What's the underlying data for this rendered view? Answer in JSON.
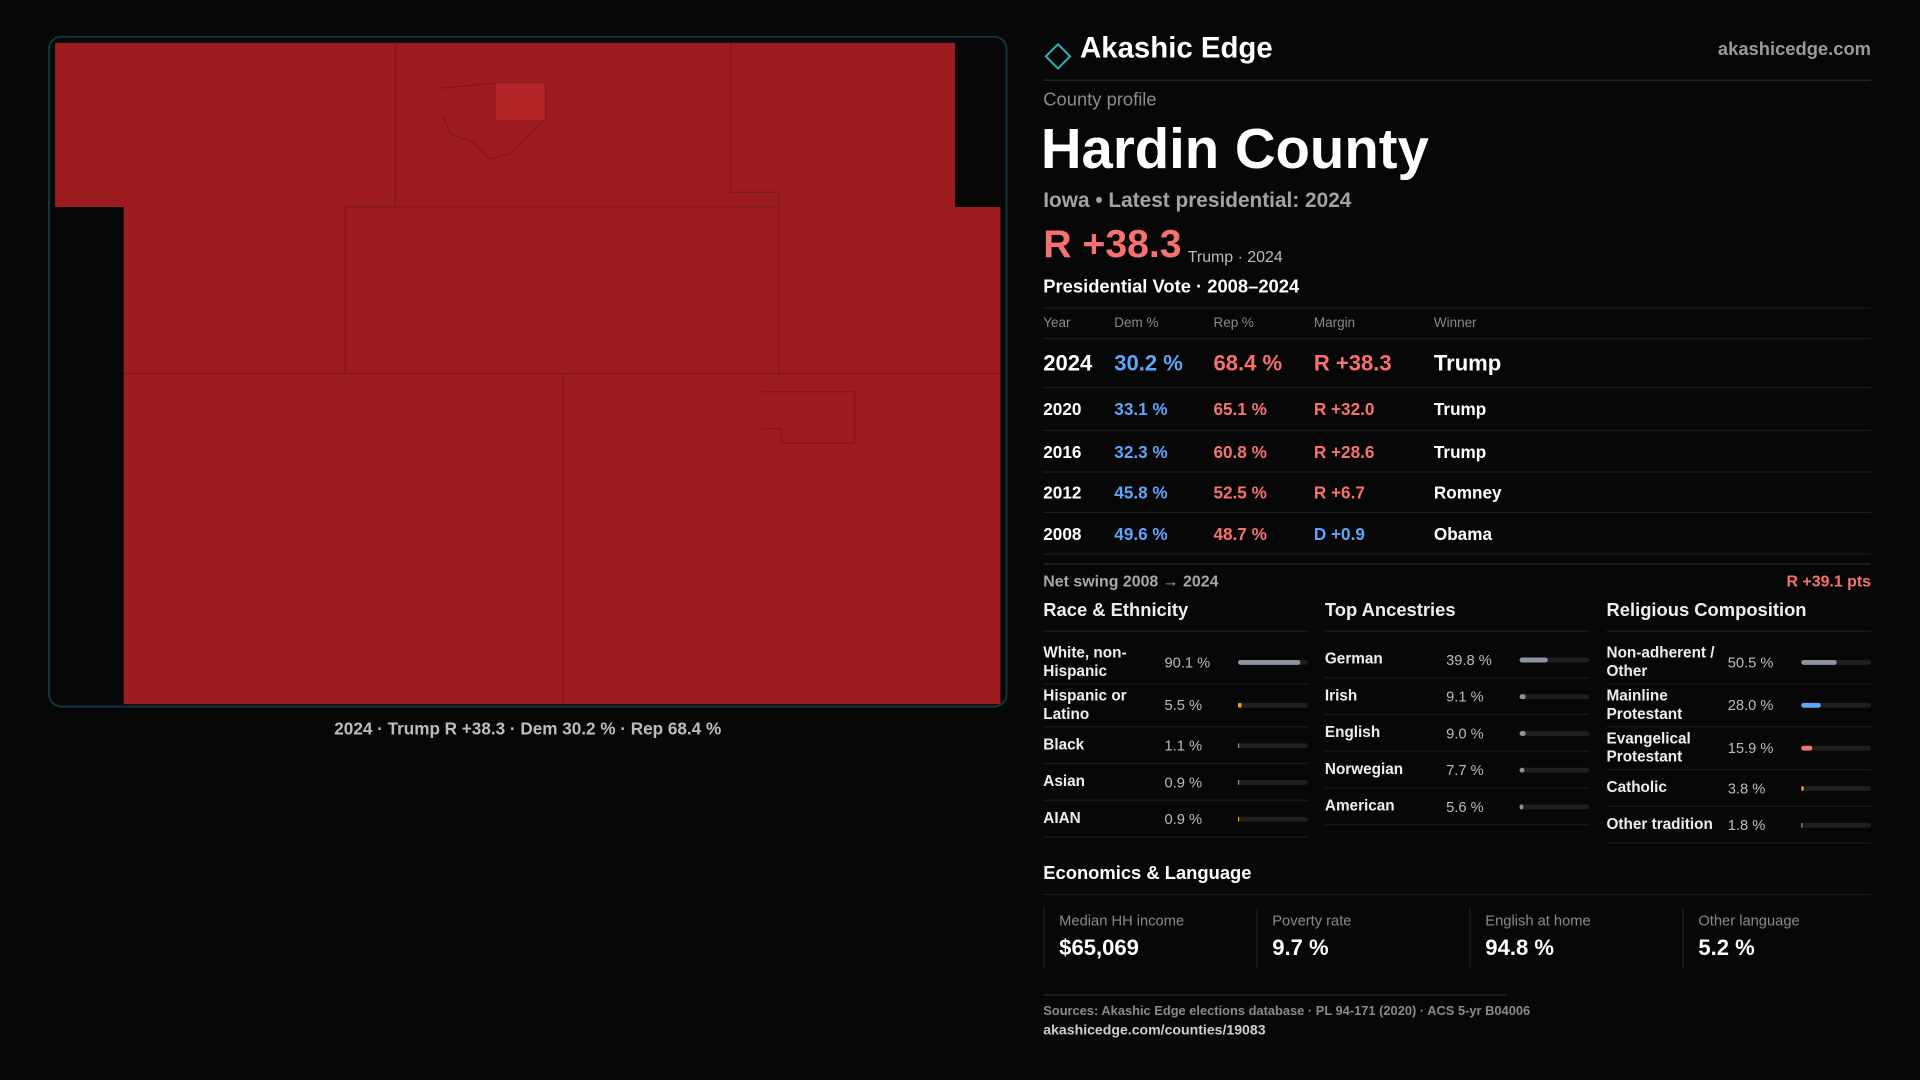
{
  "header": {
    "brand": "Akashic Edge",
    "site": "akashicedge.com"
  },
  "profile": {
    "kicker": "County profile",
    "title": "Hardin County",
    "subtitle": "Iowa • Latest presidential: 2024",
    "margin": "R +38.3",
    "margin_note": "Trump · 2024"
  },
  "map": {
    "caption": "2024 · Trump R +38.3 · Dem 30.2 % · Rep 68.4 %"
  },
  "votes": {
    "title": "Presidential Vote · 2008–2024",
    "columns": [
      "Year",
      "Dem %",
      "Rep %",
      "Margin",
      "Winner"
    ],
    "rows": [
      [
        "2024",
        "30.2 %",
        "68.4 %",
        "R +38.3",
        "Trump"
      ],
      [
        "2020",
        "33.1 %",
        "65.1 %",
        "R +32.0",
        "Trump"
      ],
      [
        "2016",
        "32.3 %",
        "60.8 %",
        "R +28.6",
        "Trump"
      ],
      [
        "2012",
        "45.8 %",
        "52.5 %",
        "R +6.7",
        "Romney"
      ],
      [
        "2008",
        "49.6 %",
        "48.7 %",
        "D +0.9",
        "Obama"
      ]
    ],
    "swing_label": "Net swing 2008 → 2024",
    "swing": "R +39.1 pts"
  },
  "demographics": [
    {
      "title": "Race & Ethnicity",
      "items": [
        {
          "label": "White, non-Hispanic",
          "value": 90.1,
          "value_label": "90.1 %",
          "color": "#8c93a3"
        },
        {
          "label": "Hispanic or Latino",
          "value": 5.5,
          "value_label": "5.5 %",
          "color": "#f59e0b"
        },
        {
          "label": "Black",
          "value": 1.1,
          "value_label": "1.1 %",
          "color": "#8c93a3"
        },
        {
          "label": "Asian",
          "value": 0.9,
          "value_label": "0.9 %",
          "color": "#8c93a3"
        },
        {
          "label": "AIAN",
          "value": 0.9,
          "value_label": "0.9 %",
          "color": "#f59e0b"
        }
      ]
    },
    {
      "title": "Top Ancestries",
      "items": [
        {
          "label": "German",
          "value": 39.8,
          "value_label": "39.8 %",
          "color": "#8c93a3"
        },
        {
          "label": "Irish",
          "value": 9.1,
          "value_label": "9.1 %",
          "color": "#8c93a3"
        },
        {
          "label": "English",
          "value": 9.0,
          "value_label": "9.0 %",
          "color": "#8c93a3"
        },
        {
          "label": "Norwegian",
          "value": 7.7,
          "value_label": "7.7 %",
          "color": "#8c93a3"
        },
        {
          "label": "American",
          "value": 5.6,
          "value_label": "5.6 %",
          "color": "#8c93a3"
        }
      ]
    },
    {
      "title": "Religious Composition",
      "items": [
        {
          "label": "Non-adherent / Other",
          "value": 50.5,
          "value_label": "50.5 %",
          "color": "#8c93a3"
        },
        {
          "label": "Mainline Protestant",
          "value": 28.0,
          "value_label": "28.0 %",
          "color": "#60a5fa"
        },
        {
          "label": "Evangelical Protestant",
          "value": 15.9,
          "value_label": "15.9 %",
          "color": "#f87171"
        },
        {
          "label": "Catholic",
          "value": 3.8,
          "value_label": "3.8 %",
          "color": "#f59e0b"
        },
        {
          "label": "Other tradition",
          "value": 1.8,
          "value_label": "1.8 %",
          "color": "#8c93a3"
        }
      ]
    }
  ],
  "economics": {
    "title": "Economics & Language",
    "stats": [
      {
        "label": "Median HH income",
        "value": "$65,069"
      },
      {
        "label": "Poverty rate",
        "value": "9.7 %"
      },
      {
        "label": "English at home",
        "value": "94.8 %"
      },
      {
        "label": "Other language",
        "value": "5.2 %"
      }
    ]
  },
  "footer": {
    "sources": "Sources: Akashic Edge elections database · PL 94-171 (2020) · ACS 5-yr B04006",
    "url": "akashicedge.com/counties/19083"
  }
}
